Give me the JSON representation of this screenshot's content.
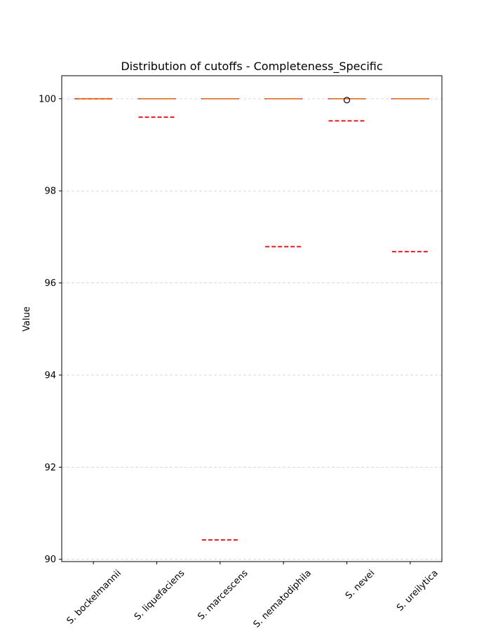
{
  "chart_data": {
    "type": "box",
    "title": "Distribution of cutoffs - Completeness_Specific",
    "xlabel": "",
    "ylabel": "Value",
    "ylim": [
      89.95,
      100.5
    ],
    "yticks": [
      90,
      92,
      94,
      96,
      98,
      100
    ],
    "grid": "y-dashed",
    "categories": [
      "S. bockelmannii",
      "S. liquefaciens",
      "S. marcescens",
      "S. nematodiphila",
      "S. nevei",
      "S. ureilytica"
    ],
    "boxes": [
      {
        "category": "S. bockelmannii",
        "median": 100,
        "q1": 100,
        "q3": 100,
        "whisker_low": 100,
        "whisker_high": 100,
        "outliers": []
      },
      {
        "category": "S. liquefaciens",
        "median": 100,
        "q1": 100,
        "q3": 100,
        "whisker_low": 100,
        "whisker_high": 100,
        "outliers": []
      },
      {
        "category": "S. marcescens",
        "median": 100,
        "q1": 100,
        "q3": 100,
        "whisker_low": 100,
        "whisker_high": 100,
        "outliers": []
      },
      {
        "category": "S. nematodiphila",
        "median": 100,
        "q1": 100,
        "q3": 100,
        "whisker_low": 100,
        "whisker_high": 100,
        "outliers": []
      },
      {
        "category": "S. nevei",
        "median": 100,
        "q1": 100,
        "q3": 100,
        "whisker_low": 100,
        "whisker_high": 100,
        "outliers": [
          99.97
        ]
      },
      {
        "category": "S. ureilytica",
        "median": 100,
        "q1": 100,
        "q3": 100,
        "whisker_low": 100,
        "whisker_high": 100,
        "outliers": []
      }
    ],
    "cutoffs": [
      100,
      99.6,
      90.42,
      96.79,
      99.52,
      96.68
    ],
    "colors": {
      "box": "#0000ff",
      "median": "#ff7f0e",
      "cutoff": "#e41a1c",
      "grid": "#cccccc",
      "axis": "#000000"
    }
  }
}
